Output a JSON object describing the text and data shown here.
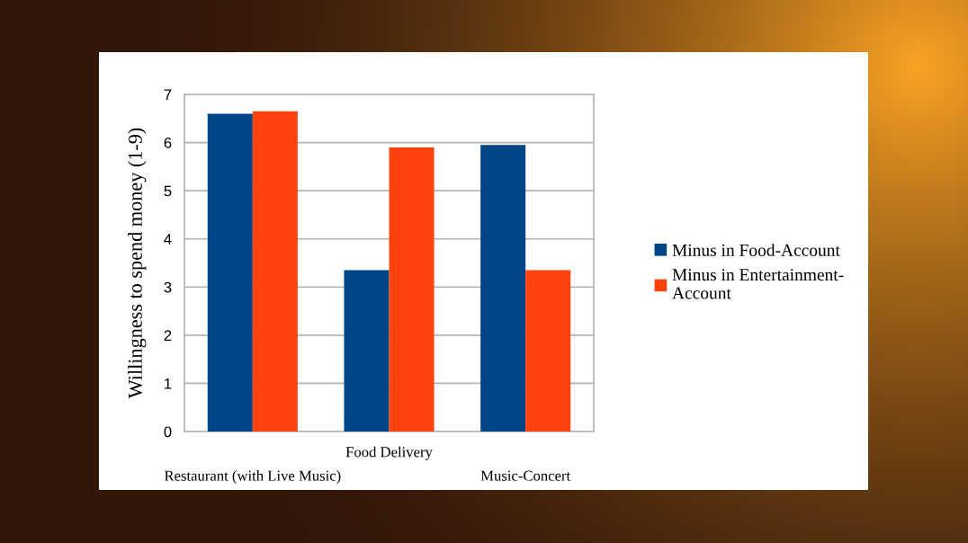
{
  "chart_data": {
    "type": "bar",
    "ylabel": "Willingness to spend money (1-9)",
    "categories": [
      "Restaurant (with Live Music)",
      "Food Delivery",
      "Music-Concert"
    ],
    "series": [
      {
        "name": "Minus in Food-Account",
        "color": "#004586",
        "values": [
          6.6,
          3.35,
          5.95
        ]
      },
      {
        "name": "Minus in Entertainment-Account",
        "color": "#ff420e",
        "values": [
          6.65,
          5.9,
          3.35
        ]
      }
    ],
    "ylim": [
      0,
      7
    ],
    "yticks": [
      0,
      1,
      2,
      3,
      4,
      5,
      6,
      7
    ],
    "grid": "y",
    "legend": "right"
  }
}
